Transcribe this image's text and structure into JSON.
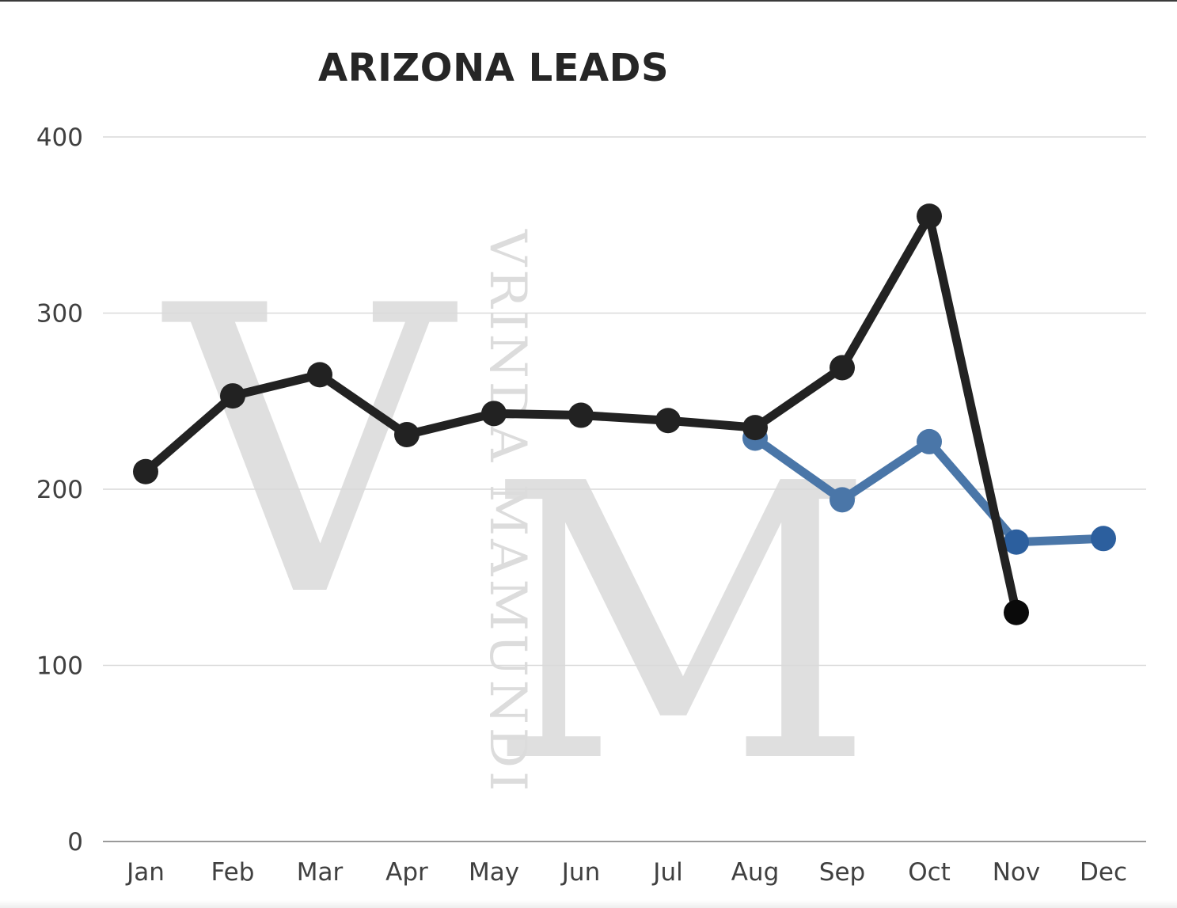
{
  "chart_data": {
    "type": "line",
    "title": "ARIZONA LEADS",
    "xlabel": "",
    "ylabel": "",
    "categories": [
      "Jan",
      "Feb",
      "Mar",
      "Apr",
      "May",
      "Jun",
      "Jul",
      "Aug",
      "Sep",
      "Oct",
      "Nov",
      "Dec"
    ],
    "ylim": [
      0,
      400
    ],
    "yticks": [
      0,
      100,
      200,
      300,
      400
    ],
    "grid": true,
    "legend": "none",
    "series": [
      {
        "color": "#222222",
        "values": [
          210,
          253,
          265,
          231,
          243,
          242,
          239,
          235,
          269,
          355,
          130,
          null
        ]
      },
      {
        "color": "#4a76a8",
        "color_end": "#2c5f9e",
        "values": [
          null,
          null,
          null,
          null,
          null,
          null,
          null,
          229,
          194,
          227,
          170,
          172
        ]
      }
    ]
  },
  "watermark": {
    "monogram": "VM",
    "text": "VRINDA MAMUNDI",
    "color": "#dcdcdc"
  }
}
